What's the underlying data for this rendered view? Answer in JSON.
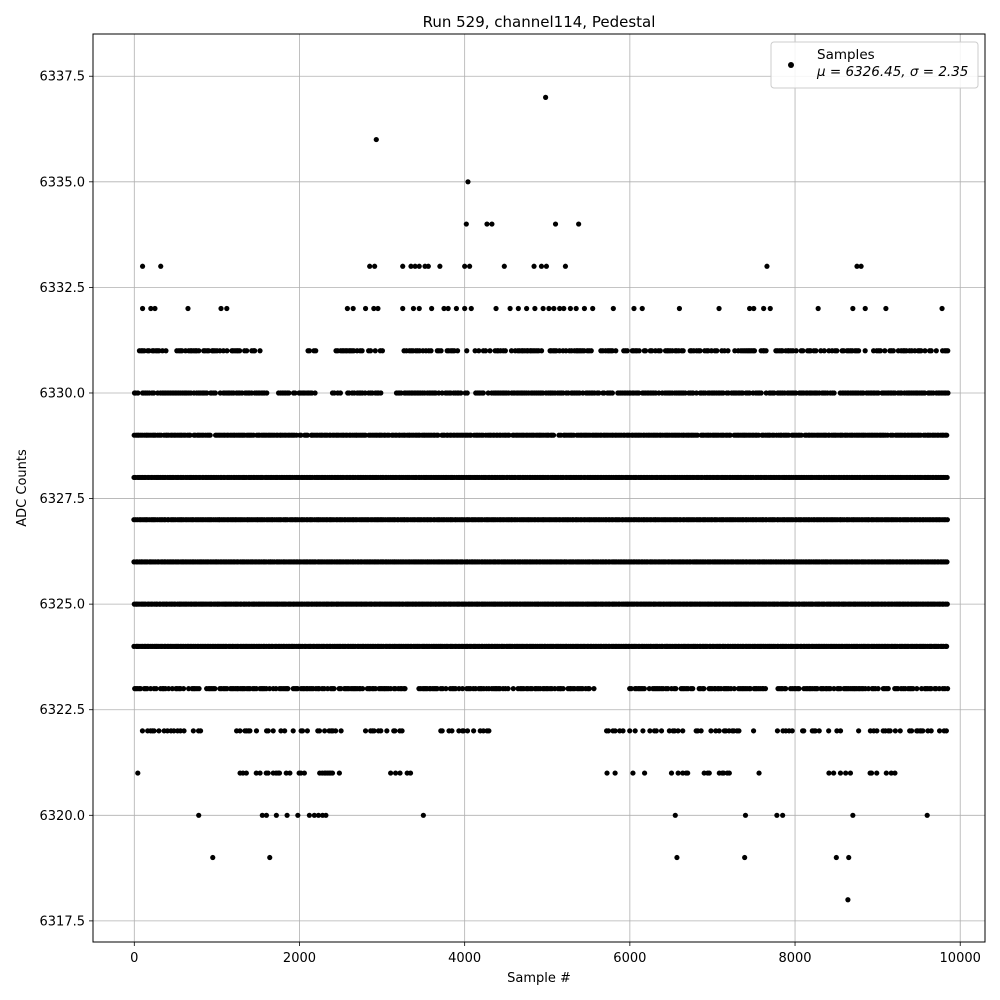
{
  "chart_data": {
    "type": "scatter",
    "title": "Run 529, channel114, Pedestal",
    "xlabel": "Sample #",
    "ylabel": "ADC Counts",
    "xlim": [
      -500,
      10300
    ],
    "ylim": [
      6317,
      6338.5
    ],
    "x_ticks": [
      0,
      2000,
      4000,
      6000,
      8000,
      10000
    ],
    "y_ticks": [
      6317.5,
      6320.0,
      6322.5,
      6325.0,
      6327.5,
      6330.0,
      6332.5,
      6335.0,
      6337.5
    ],
    "grid": true,
    "legend": {
      "position": "top-right",
      "entries": [
        {
          "label": "Samples",
          "sublabel": "μ = 6326.45, σ = 2.35"
        }
      ]
    },
    "marker_color": "#000000",
    "series": [
      {
        "name": "Samples",
        "level_ranges": [
          {
            "y": 6331,
            "ranges": [
              [
                0,
                1600
              ],
              [
                2100,
                2200
              ],
              [
                2400,
                3000
              ],
              [
                3150,
                9850
              ]
            ],
            "density": 0.55
          },
          {
            "y": 6330,
            "ranges": [
              [
                0,
                1600
              ],
              [
                1750,
                2200
              ],
              [
                2400,
                3000
              ],
              [
                3150,
                9850
              ]
            ],
            "density": 0.8
          },
          {
            "y": 6329,
            "ranges": [
              [
                0,
                9850
              ]
            ],
            "density": 0.95
          },
          {
            "y": 6328,
            "ranges": [
              [
                0,
                9850
              ]
            ],
            "density": 1.0
          },
          {
            "y": 6327,
            "ranges": [
              [
                0,
                9850
              ]
            ],
            "density": 1.0
          },
          {
            "y": 6326,
            "ranges": [
              [
                0,
                9850
              ]
            ],
            "density": 1.0
          },
          {
            "y": 6325,
            "ranges": [
              [
                0,
                9850
              ]
            ],
            "density": 1.0
          },
          {
            "y": 6324,
            "ranges": [
              [
                0,
                9850
              ]
            ],
            "density": 1.0
          },
          {
            "y": 6323,
            "ranges": [
              [
                0,
                3300
              ],
              [
                3450,
                5600
              ],
              [
                6000,
                7650
              ],
              [
                7750,
                9850
              ]
            ],
            "density": 0.75
          },
          {
            "y": 6322,
            "ranges": [
              [
                100,
                800
              ],
              [
                1200,
                2500
              ],
              [
                2800,
                3300
              ],
              [
                3650,
                4300
              ],
              [
                5700,
                7500
              ],
              [
                7750,
                9850
              ]
            ],
            "density": 0.35
          },
          {
            "y": 6321,
            "ranges": [
              [
                0,
                200
              ],
              [
                1200,
                2600
              ],
              [
                3100,
                3350
              ],
              [
                5700,
                6200
              ],
              [
                6400,
                7600
              ],
              [
                8350,
                9250
              ]
            ],
            "density": 0.25
          }
        ],
        "points": [
          [
            4980,
            6337
          ],
          [
            2930,
            6336
          ],
          [
            4040,
            6335
          ],
          [
            4020,
            6334
          ],
          [
            4270,
            6334
          ],
          [
            4330,
            6334
          ],
          [
            5100,
            6334
          ],
          [
            5380,
            6334
          ],
          [
            100,
            6333
          ],
          [
            320,
            6333
          ],
          [
            2850,
            6333
          ],
          [
            2910,
            6333
          ],
          [
            3250,
            6333
          ],
          [
            3350,
            6333
          ],
          [
            3400,
            6333
          ],
          [
            3450,
            6333
          ],
          [
            3520,
            6333
          ],
          [
            3560,
            6333
          ],
          [
            3700,
            6333
          ],
          [
            4000,
            6333
          ],
          [
            4060,
            6333
          ],
          [
            4480,
            6333
          ],
          [
            4840,
            6333
          ],
          [
            4930,
            6333
          ],
          [
            4990,
            6333
          ],
          [
            5220,
            6333
          ],
          [
            7660,
            6333
          ],
          [
            8750,
            6333
          ],
          [
            8800,
            6333
          ],
          [
            100,
            6332
          ],
          [
            200,
            6332
          ],
          [
            250,
            6332
          ],
          [
            650,
            6332
          ],
          [
            1050,
            6332
          ],
          [
            1120,
            6332
          ],
          [
            2580,
            6332
          ],
          [
            2650,
            6332
          ],
          [
            2800,
            6332
          ],
          [
            2900,
            6332
          ],
          [
            2950,
            6332
          ],
          [
            3250,
            6332
          ],
          [
            3380,
            6332
          ],
          [
            3450,
            6332
          ],
          [
            3600,
            6332
          ],
          [
            3750,
            6332
          ],
          [
            3800,
            6332
          ],
          [
            3900,
            6332
          ],
          [
            4000,
            6332
          ],
          [
            4080,
            6332
          ],
          [
            4380,
            6332
          ],
          [
            4550,
            6332
          ],
          [
            4650,
            6332
          ],
          [
            4750,
            6332
          ],
          [
            4850,
            6332
          ],
          [
            4950,
            6332
          ],
          [
            5020,
            6332
          ],
          [
            5080,
            6332
          ],
          [
            5150,
            6332
          ],
          [
            5200,
            6332
          ],
          [
            5280,
            6332
          ],
          [
            5350,
            6332
          ],
          [
            5450,
            6332
          ],
          [
            5550,
            6332
          ],
          [
            5800,
            6332
          ],
          [
            6050,
            6332
          ],
          [
            6150,
            6332
          ],
          [
            6600,
            6332
          ],
          [
            7080,
            6332
          ],
          [
            7450,
            6332
          ],
          [
            7500,
            6332
          ],
          [
            7620,
            6332
          ],
          [
            7700,
            6332
          ],
          [
            8280,
            6332
          ],
          [
            8700,
            6332
          ],
          [
            8850,
            6332
          ],
          [
            9100,
            6332
          ],
          [
            9780,
            6332
          ],
          [
            780,
            6320
          ],
          [
            1550,
            6320
          ],
          [
            1600,
            6320
          ],
          [
            1720,
            6320
          ],
          [
            1850,
            6320
          ],
          [
            1980,
            6320
          ],
          [
            2120,
            6320
          ],
          [
            2180,
            6320
          ],
          [
            2230,
            6320
          ],
          [
            2280,
            6320
          ],
          [
            2320,
            6320
          ],
          [
            3500,
            6320
          ],
          [
            6550,
            6320
          ],
          [
            7400,
            6320
          ],
          [
            7780,
            6320
          ],
          [
            7850,
            6320
          ],
          [
            8700,
            6320
          ],
          [
            9600,
            6320
          ],
          [
            950,
            6319
          ],
          [
            1640,
            6319
          ],
          [
            6570,
            6319
          ],
          [
            7390,
            6319
          ],
          [
            8500,
            6319
          ],
          [
            8650,
            6319
          ],
          [
            8640,
            6318
          ]
        ]
      }
    ]
  }
}
